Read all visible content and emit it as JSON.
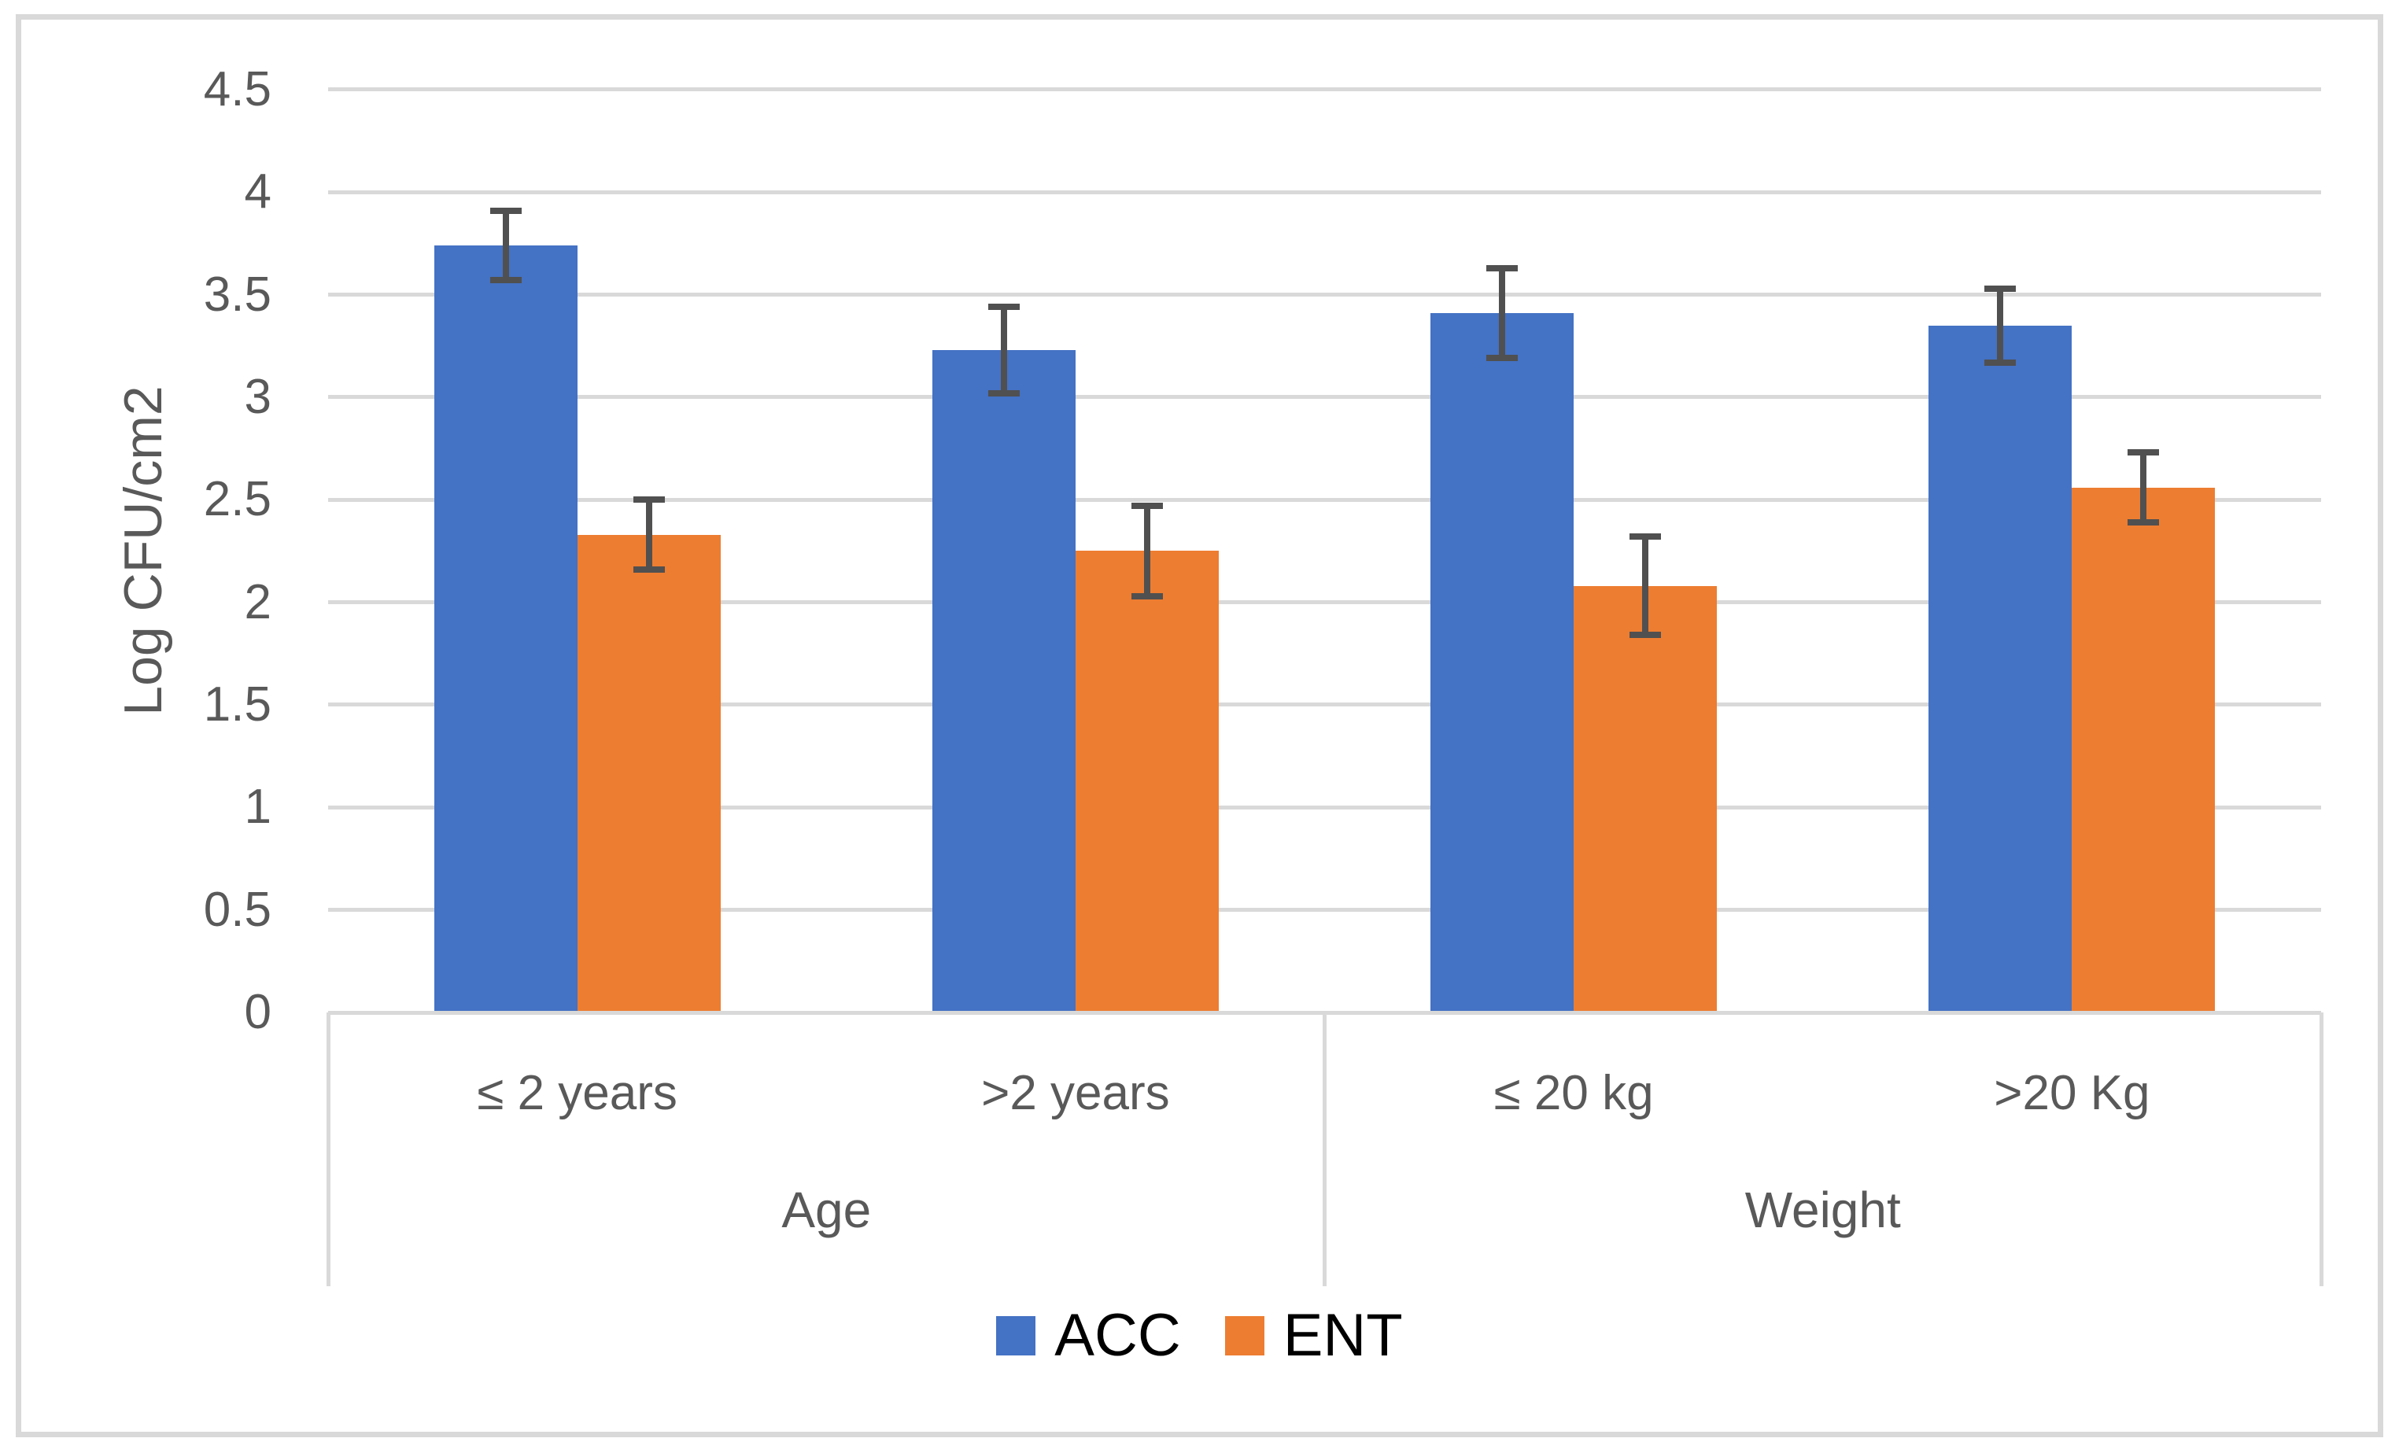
{
  "chart_data": {
    "type": "bar",
    "title": "",
    "ylabel": "Log CFU/cm2",
    "xlabel": "",
    "ylim": [
      0,
      4.5
    ],
    "ytick_step": 0.5,
    "yticks": [
      "0",
      "0.5",
      "1",
      "1.5",
      "2",
      "2.5",
      "3",
      "3.5",
      "4",
      "4.5"
    ],
    "grid": true,
    "legend_position": "bottom",
    "categories": [
      "≤ 2 years",
      ">2 years",
      "≤ 20 kg",
      ">20 Kg"
    ],
    "group_axis": [
      {
        "label": "Age",
        "categories": [
          "≤ 2 years",
          ">2 years"
        ]
      },
      {
        "label": "Weight",
        "categories": [
          "≤ 20 kg",
          ">20 Kg"
        ]
      }
    ],
    "series": [
      {
        "name": "ACC",
        "color": "#4472C4",
        "values": [
          3.74,
          3.23,
          3.41,
          3.35
        ],
        "errors": [
          0.17,
          0.21,
          0.22,
          0.18
        ]
      },
      {
        "name": "ENT",
        "color": "#ED7D31",
        "values": [
          2.33,
          2.25,
          2.08,
          2.56
        ],
        "errors": [
          0.17,
          0.22,
          0.24,
          0.17
        ]
      }
    ]
  },
  "colors": {
    "gridline": "#D9D9D9",
    "axis_text": "#595959",
    "error_bar": "#505050",
    "legend_text": "#000000",
    "frame_border": "#D9D9D9",
    "background": "#FFFFFF"
  }
}
